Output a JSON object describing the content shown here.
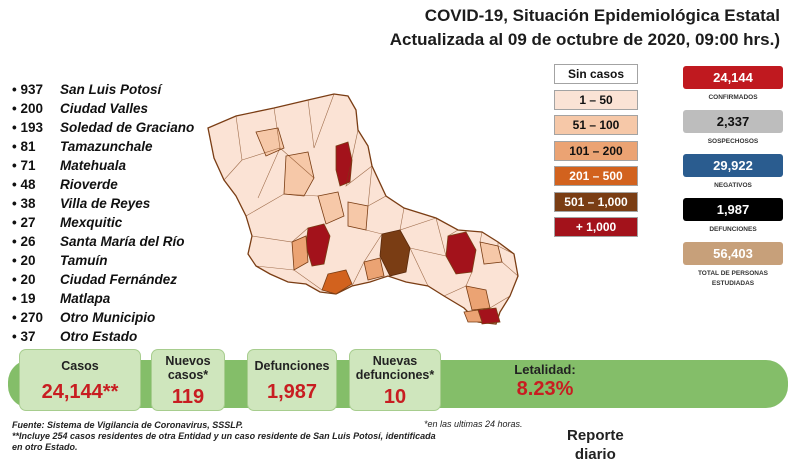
{
  "header": {
    "title_line1": "COVID-19, Situación Epidemiológica Estatal",
    "title_line2": "Actualizada al 09 de octubre de 2020, 09:00 hrs.)"
  },
  "municipality_cases": [
    {
      "count": "937",
      "name": "San Luis Potosí"
    },
    {
      "count": "200",
      "name": "Ciudad Valles"
    },
    {
      "count": "193",
      "name": "Soledad de Graciano"
    },
    {
      "count": "81",
      "name": "Tamazunchale"
    },
    {
      "count": "71",
      "name": "Matehuala"
    },
    {
      "count": "48",
      "name": "Rioverde"
    },
    {
      "count": "38",
      "name": "Villa de Reyes"
    },
    {
      "count": "27",
      "name": "Mexquitic"
    },
    {
      "count": "26",
      "name": "Santa María del Río"
    },
    {
      "count": "20",
      "name": "Tamuín"
    },
    {
      "count": "20",
      "name": "Ciudad Fernández"
    },
    {
      "count": "19",
      "name": "Matlapa"
    },
    {
      "count": "270",
      "name": "Otro Municipio"
    },
    {
      "count": "37",
      "name": "Otro Estado"
    }
  ],
  "legend": [
    {
      "label": "Sin casos",
      "color": "#ffffff",
      "text_color": "#111111"
    },
    {
      "label": "1 – 50",
      "color": "#fbe3d5",
      "text_color": "#111111"
    },
    {
      "label": "51 – 100",
      "color": "#f6c8a8",
      "text_color": "#111111"
    },
    {
      "label": "101 – 200",
      "color": "#eba373",
      "text_color": "#111111"
    },
    {
      "label": "201 – 500",
      "color": "#d2621e",
      "text_color": "#ffffff"
    },
    {
      "label": "501 – 1,000",
      "color": "#7a3d14",
      "text_color": "#ffffff"
    },
    {
      "label": "+ 1,000",
      "color": "#a3121b",
      "text_color": "#ffffff"
    }
  ],
  "stats": [
    {
      "value": "24,144",
      "label": "CONFIRMADOS",
      "color": "#c0191f",
      "text_color": "#ffffff"
    },
    {
      "value": "2,337",
      "label": "SOSPECHOSOS",
      "color": "#bdbdbd",
      "text_color": "#111111"
    },
    {
      "value": "29,922",
      "label": "NEGATIVOS",
      "color": "#2a5c8f",
      "text_color": "#ffffff"
    },
    {
      "value": "1,987",
      "label": "DEFUNCIONES",
      "color": "#000000",
      "text_color": "#ffffff"
    },
    {
      "value": "56,403",
      "label": "TOTAL DE PERSONAS ESTUDIADAS",
      "color": "#c7a07a",
      "text_color": "#ffffff"
    }
  ],
  "summary": {
    "casos_label": "Casos",
    "casos_value": "24,144**",
    "nuevos_casos_label": "Nuevos casos*",
    "nuevos_casos_value": "119",
    "defunciones_label": "Defunciones",
    "defunciones_value": "1,987",
    "nuevas_defunciones_label": "Nuevas defunciones*",
    "nuevas_defunciones_value": "10",
    "letalidad_label": "Letalidad:",
    "letalidad_value": "8.23%"
  },
  "footer": {
    "source": "Fuente: Sistema de Vigilancia de Coronavirus, SSSLP.",
    "note_line1": "**Incluye 254 casos residentes de otra Entidad y un caso residente de San Luis Potosí, identificada",
    "note_line2": "en otro Estado.",
    "footnote": "*en las ultimas 24 horas.",
    "report_line1": "Reporte",
    "report_line2": "diario"
  }
}
